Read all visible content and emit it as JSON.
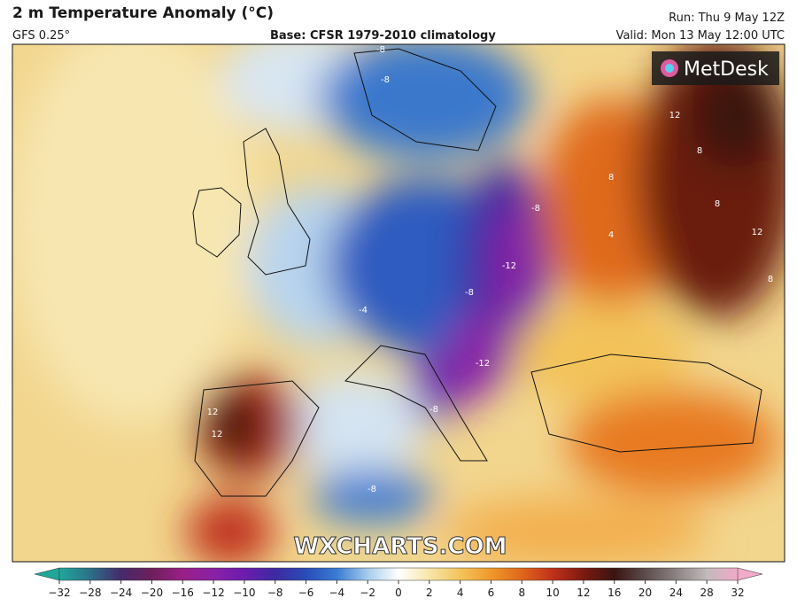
{
  "header": {
    "title": "2 m Temperature Anomaly (°C)",
    "model": "GFS 0.25°",
    "base": "Base: CFSR 1979-2010 climatology",
    "run": "Run: Thu 9 May 12Z",
    "valid": "Valid: Mon 13 May 12:00 UTC"
  },
  "logo": "MetDesk",
  "watermark": "WXCHARTS.COM",
  "contour_labels": [
    -8,
    -8,
    -8,
    -12,
    -12,
    -8,
    -8,
    -4,
    12,
    12,
    8,
    8,
    12,
    8,
    12,
    -8,
    8,
    4
  ],
  "colorbar": {
    "ticks": [
      {
        "value": -32,
        "label": "−32"
      },
      {
        "value": -28,
        "label": "−28"
      },
      {
        "value": -24,
        "label": "−24"
      },
      {
        "value": -20,
        "label": "−20"
      },
      {
        "value": -16,
        "label": "−16"
      },
      {
        "value": -12,
        "label": "−12"
      },
      {
        "value": -10,
        "label": "−10"
      },
      {
        "value": -8,
        "label": "−8"
      },
      {
        "value": -6,
        "label": "−6"
      },
      {
        "value": -4,
        "label": "−4"
      },
      {
        "value": -2,
        "label": "−2"
      },
      0,
      2,
      4,
      6,
      8,
      10,
      12,
      16,
      20,
      24,
      28,
      32
    ],
    "colors": [
      "#1fa89a",
      "#2c6f88",
      "#452a6a",
      "#6e1f5c",
      "#9a1f86",
      "#8a20a6",
      "#6a1cae",
      "#3c2aa2",
      "#2a4cba",
      "#3a7cd2",
      "#a6cdec",
      "#ffffff",
      "#f6e6a6",
      "#f3c35a",
      "#f0982a",
      "#e0661a",
      "#c0301a",
      "#7a1a10",
      "#3a1410",
      "#5c4c4c",
      "#8c8283",
      "#c2baba",
      "#f2aaca"
    ]
  }
}
